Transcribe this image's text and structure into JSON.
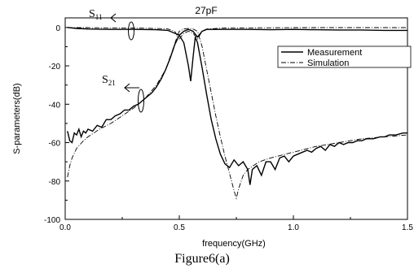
{
  "chart_data": {
    "type": "line",
    "title": "27pF",
    "xlabel": "frequency(GHz)",
    "ylabel": "S-parameters(dB)",
    "caption": "Figure6(a)",
    "xlim": [
      0.0,
      1.5
    ],
    "ylim": [
      -100,
      5
    ],
    "x_ticks": [
      "0.0",
      "0.5",
      "1.0",
      "1.5"
    ],
    "y_ticks": [
      "0",
      "-20",
      "-40",
      "-60",
      "-80",
      "-100"
    ],
    "legend_position": "top-right",
    "annotations": {
      "s11": {
        "main": "S",
        "sub": "11"
      },
      "s21": {
        "main": "S",
        "sub": "21"
      }
    },
    "series": [
      {
        "name": "Measurement",
        "style": "solid",
        "curves": [
          {
            "param": "S21",
            "points": [
              [
                0.01,
                -54
              ],
              [
                0.02,
                -59
              ],
              [
                0.03,
                -60
              ],
              [
                0.04,
                -55
              ],
              [
                0.05,
                -56
              ],
              [
                0.06,
                -53
              ],
              [
                0.07,
                -57
              ],
              [
                0.08,
                -54
              ],
              [
                0.09,
                -55
              ],
              [
                0.1,
                -53
              ],
              [
                0.12,
                -54
              ],
              [
                0.14,
                -51
              ],
              [
                0.16,
                -52
              ],
              [
                0.18,
                -48
              ],
              [
                0.2,
                -48
              ],
              [
                0.22,
                -46
              ],
              [
                0.24,
                -45
              ],
              [
                0.26,
                -43
              ],
              [
                0.28,
                -43
              ],
              [
                0.3,
                -41
              ],
              [
                0.32,
                -40
              ],
              [
                0.34,
                -38
              ],
              [
                0.36,
                -36
              ],
              [
                0.38,
                -34
              ],
              [
                0.4,
                -31
              ],
              [
                0.42,
                -27
              ],
              [
                0.44,
                -22
              ],
              [
                0.46,
                -16
              ],
              [
                0.48,
                -9
              ],
              [
                0.5,
                -4
              ],
              [
                0.52,
                -8
              ],
              [
                0.54,
                -20
              ],
              [
                0.55,
                -28
              ],
              [
                0.56,
                -16
              ],
              [
                0.57,
                -5
              ],
              [
                0.58,
                -8
              ],
              [
                0.6,
                -21
              ],
              [
                0.62,
                -35
              ],
              [
                0.64,
                -48
              ],
              [
                0.66,
                -58
              ],
              [
                0.68,
                -66
              ],
              [
                0.7,
                -71
              ],
              [
                0.72,
                -73
              ],
              [
                0.74,
                -69
              ],
              [
                0.76,
                -72
              ],
              [
                0.78,
                -70
              ],
              [
                0.8,
                -74
              ],
              [
                0.81,
                -82
              ],
              [
                0.82,
                -74
              ],
              [
                0.84,
                -72
              ],
              [
                0.86,
                -77
              ],
              [
                0.88,
                -70
              ],
              [
                0.9,
                -70
              ],
              [
                0.92,
                -74
              ],
              [
                0.94,
                -68
              ],
              [
                0.96,
                -67
              ],
              [
                0.98,
                -70
              ],
              [
                1.0,
                -67
              ],
              [
                1.02,
                -66
              ],
              [
                1.04,
                -65
              ],
              [
                1.06,
                -64
              ],
              [
                1.08,
                -65
              ],
              [
                1.1,
                -63
              ],
              [
                1.12,
                -62
              ],
              [
                1.14,
                -64
              ],
              [
                1.16,
                -61
              ],
              [
                1.18,
                -62
              ],
              [
                1.2,
                -60
              ],
              [
                1.22,
                -61
              ],
              [
                1.24,
                -60
              ],
              [
                1.26,
                -60
              ],
              [
                1.28,
                -59
              ],
              [
                1.3,
                -59
              ],
              [
                1.32,
                -58
              ],
              [
                1.35,
                -58
              ],
              [
                1.38,
                -57
              ],
              [
                1.4,
                -57
              ],
              [
                1.42,
                -56
              ],
              [
                1.45,
                -56
              ],
              [
                1.48,
                -55
              ],
              [
                1.5,
                -55
              ]
            ]
          },
          {
            "param": "S11",
            "points": [
              [
                0.01,
                0
              ],
              [
                0.05,
                -0.5
              ],
              [
                0.1,
                -0.8
              ],
              [
                0.2,
                -1
              ],
              [
                0.3,
                -1
              ],
              [
                0.4,
                -1.2
              ],
              [
                0.45,
                -1.5
              ],
              [
                0.48,
                -3
              ],
              [
                0.5,
                -4
              ],
              [
                0.52,
                -2
              ],
              [
                0.54,
                -1
              ],
              [
                0.56,
                -2
              ],
              [
                0.58,
                -5
              ],
              [
                0.6,
                -2
              ],
              [
                0.62,
                -1
              ],
              [
                0.7,
                -1
              ],
              [
                0.8,
                -1
              ],
              [
                0.9,
                -1.2
              ],
              [
                1.0,
                -1
              ],
              [
                1.1,
                -1.2
              ],
              [
                1.2,
                -1.3
              ],
              [
                1.3,
                -1.3
              ],
              [
                1.4,
                -1.5
              ],
              [
                1.5,
                -1.5
              ]
            ]
          }
        ]
      },
      {
        "name": "Simulation",
        "style": "dash-dot",
        "curves": [
          {
            "param": "S21",
            "points": [
              [
                0.01,
                -78
              ],
              [
                0.02,
                -72
              ],
              [
                0.03,
                -68
              ],
              [
                0.05,
                -63
              ],
              [
                0.08,
                -59
              ],
              [
                0.1,
                -57
              ],
              [
                0.15,
                -53
              ],
              [
                0.2,
                -50
              ],
              [
                0.25,
                -46
              ],
              [
                0.3,
                -42
              ],
              [
                0.35,
                -37
              ],
              [
                0.4,
                -30
              ],
              [
                0.44,
                -22
              ],
              [
                0.47,
                -12
              ],
              [
                0.49,
                -5
              ],
              [
                0.5,
                -2
              ],
              [
                0.52,
                -0.8
              ],
              [
                0.54,
                -0.5
              ],
              [
                0.56,
                -0.8
              ],
              [
                0.58,
                -2
              ],
              [
                0.6,
                -10
              ],
              [
                0.62,
                -22
              ],
              [
                0.64,
                -34
              ],
              [
                0.66,
                -46
              ],
              [
                0.68,
                -57
              ],
              [
                0.7,
                -67
              ],
              [
                0.72,
                -76
              ],
              [
                0.74,
                -85
              ],
              [
                0.75,
                -89
              ],
              [
                0.76,
                -84
              ],
              [
                0.78,
                -77
              ],
              [
                0.8,
                -74
              ],
              [
                0.85,
                -70
              ],
              [
                0.9,
                -68
              ],
              [
                1.0,
                -65
              ],
              [
                1.1,
                -62
              ],
              [
                1.2,
                -60
              ],
              [
                1.3,
                -58
              ],
              [
                1.4,
                -57
              ],
              [
                1.5,
                -56
              ]
            ]
          },
          {
            "param": "S11",
            "points": [
              [
                0.01,
                -0.1
              ],
              [
                0.1,
                -0.1
              ],
              [
                0.2,
                -0.2
              ],
              [
                0.3,
                -0.3
              ],
              [
                0.4,
                -0.5
              ],
              [
                0.45,
                -0.8
              ],
              [
                0.48,
                -2
              ],
              [
                0.5,
                -6
              ],
              [
                0.52,
                -3
              ],
              [
                0.54,
                -2
              ],
              [
                0.56,
                -3
              ],
              [
                0.58,
                -6
              ],
              [
                0.6,
                -2
              ],
              [
                0.62,
                -0.8
              ],
              [
                0.7,
                -0.3
              ],
              [
                0.8,
                -0.2
              ],
              [
                1.0,
                -0.1
              ],
              [
                1.5,
                -0.1
              ]
            ]
          }
        ]
      }
    ]
  }
}
